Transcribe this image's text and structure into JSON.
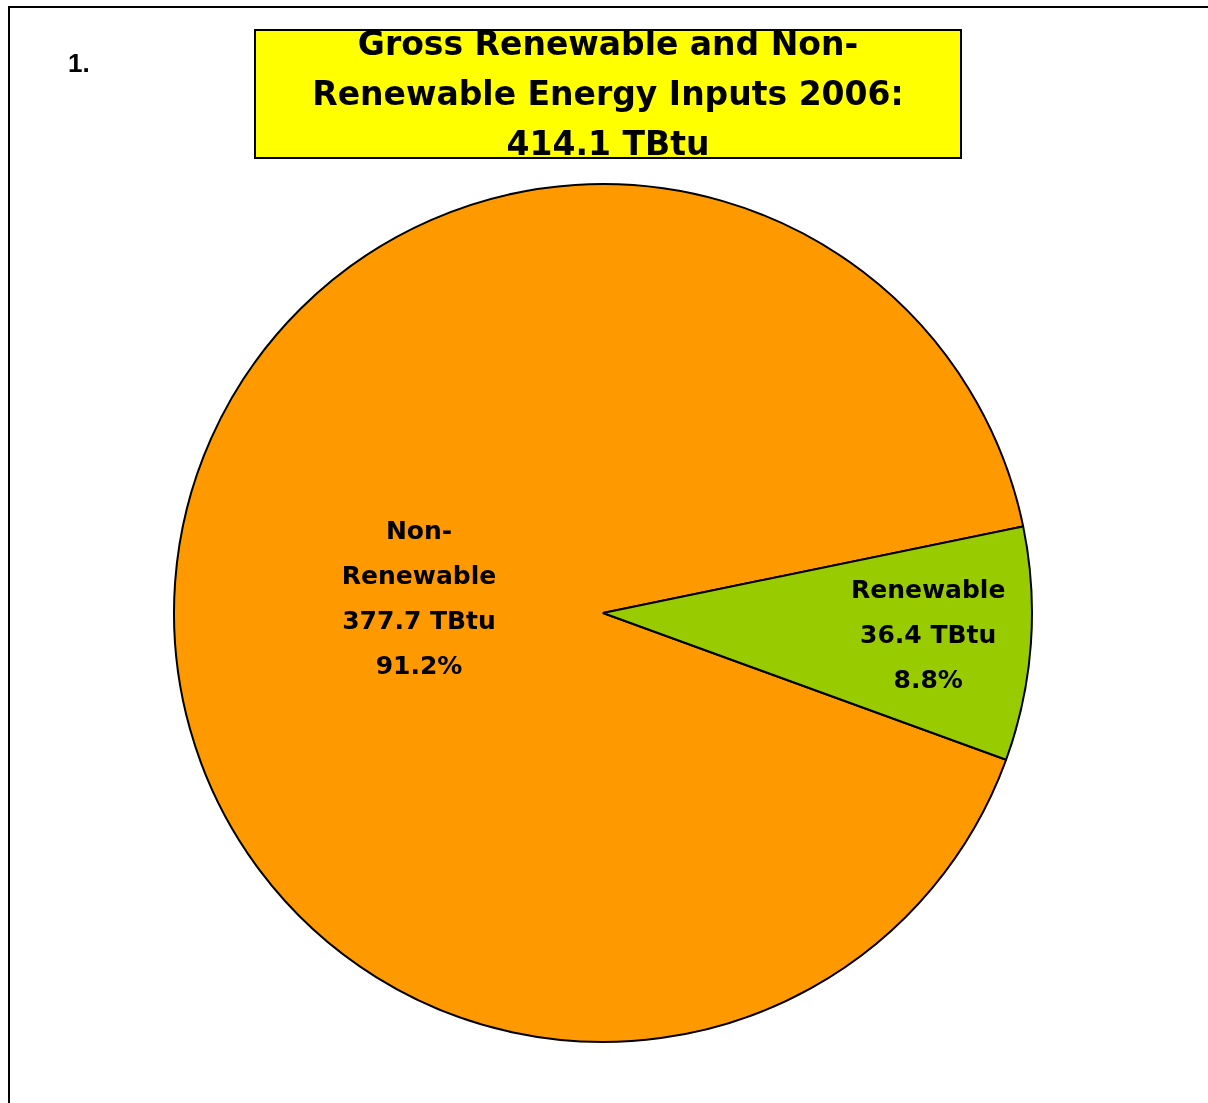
{
  "chart_data": {
    "type": "pie",
    "title": "Gross Renewable and Non-Renewable Energy Inputs 2006: 414.1 TBtu",
    "categories": [
      "Non-Renewable",
      "Renewable"
    ],
    "values": [
      377.7,
      36.4
    ],
    "colors": [
      "#ff9900",
      "#99cc00"
    ],
    "value_labels": [
      "377.7 TBtu\n91.2%",
      "36.4 TBtu\n8.8%"
    ],
    "annotations": [
      "1."
    ],
    "legend": false
  }
}
